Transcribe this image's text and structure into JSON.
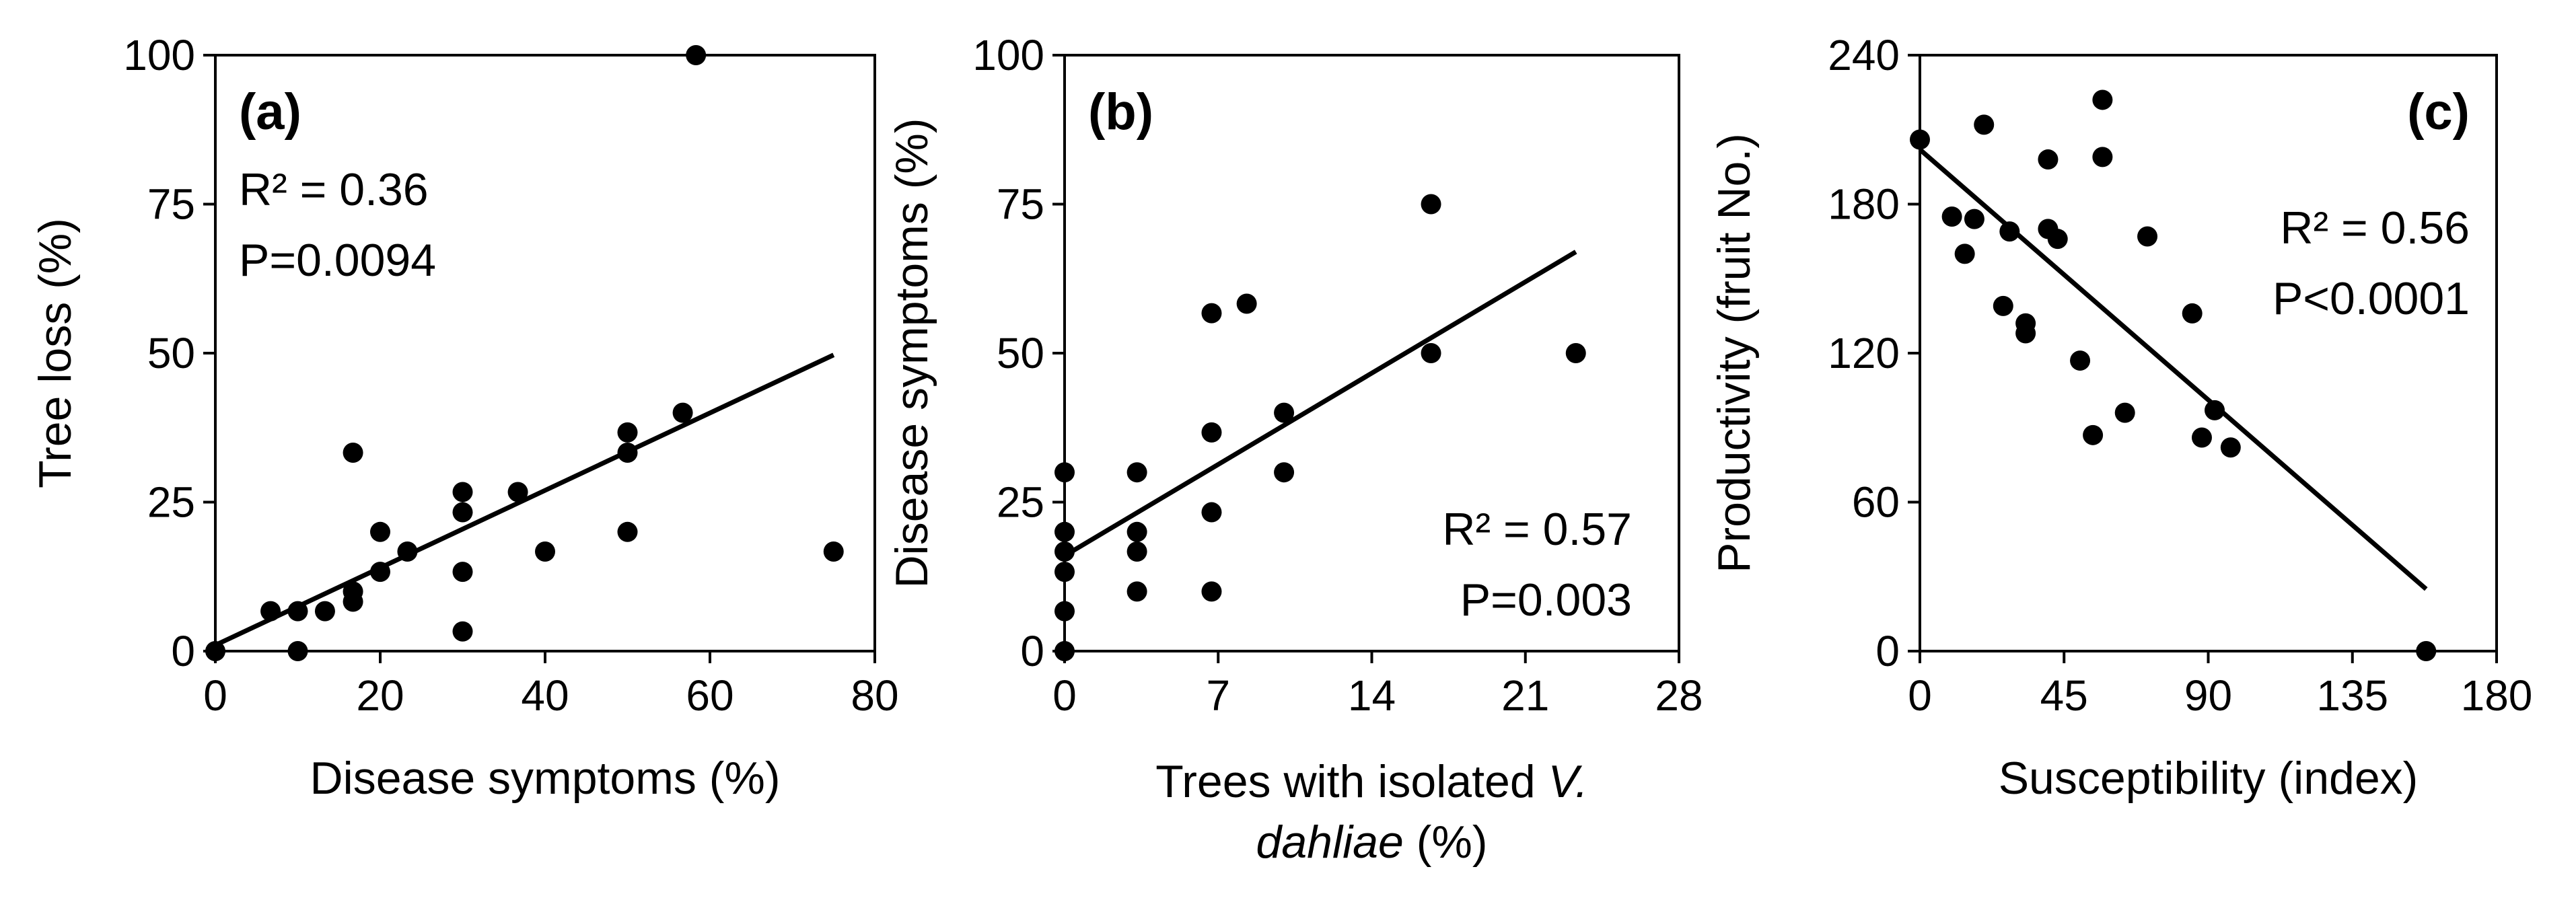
{
  "chart_data": [
    {
      "type": "scatter",
      "panel": "(a)",
      "xlabel": "Disease symptoms (%)",
      "ylabel": "Tree loss (%)",
      "xlim": [
        0,
        80
      ],
      "ylim": [
        0,
        100
      ],
      "xticks": [
        "0",
        "20",
        "40",
        "60",
        "80"
      ],
      "yticks": [
        "0",
        "25",
        "50",
        "75",
        "100"
      ],
      "xtick_values": [
        0,
        20,
        40,
        60,
        80
      ],
      "ytick_values": [
        0,
        25,
        50,
        75,
        100
      ],
      "stats": [
        "R² = 0.36",
        "P=0.0094"
      ],
      "stats_position": "top-left",
      "points": [
        {
          "x": 0,
          "y": 0
        },
        {
          "x": 6.7,
          "y": 6.7
        },
        {
          "x": 10,
          "y": 6.7
        },
        {
          "x": 10,
          "y": 0
        },
        {
          "x": 13.3,
          "y": 6.7
        },
        {
          "x": 16.7,
          "y": 10
        },
        {
          "x": 16.7,
          "y": 8.3
        },
        {
          "x": 16.7,
          "y": 33.3
        },
        {
          "x": 20,
          "y": 20
        },
        {
          "x": 20,
          "y": 13.3
        },
        {
          "x": 23.3,
          "y": 16.7
        },
        {
          "x": 30,
          "y": 26.7
        },
        {
          "x": 30,
          "y": 23.3
        },
        {
          "x": 30,
          "y": 13.3
        },
        {
          "x": 30,
          "y": 3.3
        },
        {
          "x": 36.7,
          "y": 26.7
        },
        {
          "x": 40,
          "y": 16.7
        },
        {
          "x": 50,
          "y": 36.7
        },
        {
          "x": 50,
          "y": 33.3
        },
        {
          "x": 50,
          "y": 20
        },
        {
          "x": 56.7,
          "y": 40
        },
        {
          "x": 58.3,
          "y": 100
        },
        {
          "x": 75,
          "y": 16.7
        }
      ],
      "trendline": {
        "x": [
          0,
          75
        ],
        "y": [
          1,
          49.7
        ]
      }
    },
    {
      "type": "scatter",
      "panel": "(b)",
      "xlabel": "Trees with isolated ",
      "xlabel_italic": "V.",
      "xlabel_line2_italic": "dahliae",
      "xlabel_line2": " (%)",
      "ylabel": "Disease symptoms (%)",
      "xlim": [
        0,
        28
      ],
      "ylim": [
        0,
        100
      ],
      "xticks": [
        "0",
        "7",
        "14",
        "21",
        "28"
      ],
      "yticks": [
        "0",
        "25",
        "50",
        "75",
        "100"
      ],
      "xtick_values": [
        0,
        7,
        14,
        21,
        28
      ],
      "ytick_values": [
        0,
        25,
        50,
        75,
        100
      ],
      "stats": [
        "R² = 0.57",
        "P=0.003"
      ],
      "stats_position": "bottom-right",
      "points": [
        {
          "x": 0,
          "y": 30
        },
        {
          "x": 0,
          "y": 20
        },
        {
          "x": 0,
          "y": 16.7
        },
        {
          "x": 0,
          "y": 13.3
        },
        {
          "x": 0,
          "y": 6.7
        },
        {
          "x": 0,
          "y": 0
        },
        {
          "x": 3.3,
          "y": 30
        },
        {
          "x": 3.3,
          "y": 20
        },
        {
          "x": 3.3,
          "y": 16.7
        },
        {
          "x": 3.3,
          "y": 10
        },
        {
          "x": 6.7,
          "y": 56.7
        },
        {
          "x": 6.7,
          "y": 36.7
        },
        {
          "x": 6.7,
          "y": 23.3
        },
        {
          "x": 6.7,
          "y": 10
        },
        {
          "x": 8.3,
          "y": 58.3
        },
        {
          "x": 10,
          "y": 40
        },
        {
          "x": 10,
          "y": 30
        },
        {
          "x": 16.7,
          "y": 75
        },
        {
          "x": 16.7,
          "y": 50
        },
        {
          "x": 23.3,
          "y": 50
        }
      ],
      "trendline": {
        "x": [
          0,
          23.3
        ],
        "y": [
          16,
          67
        ]
      }
    },
    {
      "type": "scatter",
      "panel": "(c)",
      "xlabel": "Susceptibility (index)",
      "ylabel": "Productivity (fruit No.)",
      "xlim": [
        0,
        180
      ],
      "ylim": [
        0,
        240
      ],
      "xticks": [
        "0",
        "45",
        "90",
        "135",
        "180"
      ],
      "yticks": [
        "0",
        "60",
        "120",
        "180",
        "240"
      ],
      "xtick_values": [
        0,
        45,
        90,
        135,
        180
      ],
      "ytick_values": [
        0,
        60,
        120,
        180,
        240
      ],
      "stats": [
        "R² = 0.56",
        "P<0.0001"
      ],
      "stats_position": "top-right",
      "points": [
        {
          "x": 0,
          "y": 206
        },
        {
          "x": 10,
          "y": 175
        },
        {
          "x": 14,
          "y": 160
        },
        {
          "x": 17,
          "y": 174
        },
        {
          "x": 20,
          "y": 212
        },
        {
          "x": 26,
          "y": 139
        },
        {
          "x": 28,
          "y": 169
        },
        {
          "x": 33,
          "y": 132
        },
        {
          "x": 33,
          "y": 128
        },
        {
          "x": 40,
          "y": 170
        },
        {
          "x": 40,
          "y": 198
        },
        {
          "x": 43,
          "y": 166
        },
        {
          "x": 50,
          "y": 117
        },
        {
          "x": 54,
          "y": 87
        },
        {
          "x": 57,
          "y": 222
        },
        {
          "x": 57,
          "y": 199
        },
        {
          "x": 64,
          "y": 96
        },
        {
          "x": 71,
          "y": 167
        },
        {
          "x": 85,
          "y": 136
        },
        {
          "x": 88,
          "y": 86
        },
        {
          "x": 92,
          "y": 97
        },
        {
          "x": 97,
          "y": 82
        },
        {
          "x": 158,
          "y": 0
        }
      ],
      "trendline": {
        "x": [
          0,
          158
        ],
        "y": [
          202,
          25
        ]
      }
    }
  ]
}
